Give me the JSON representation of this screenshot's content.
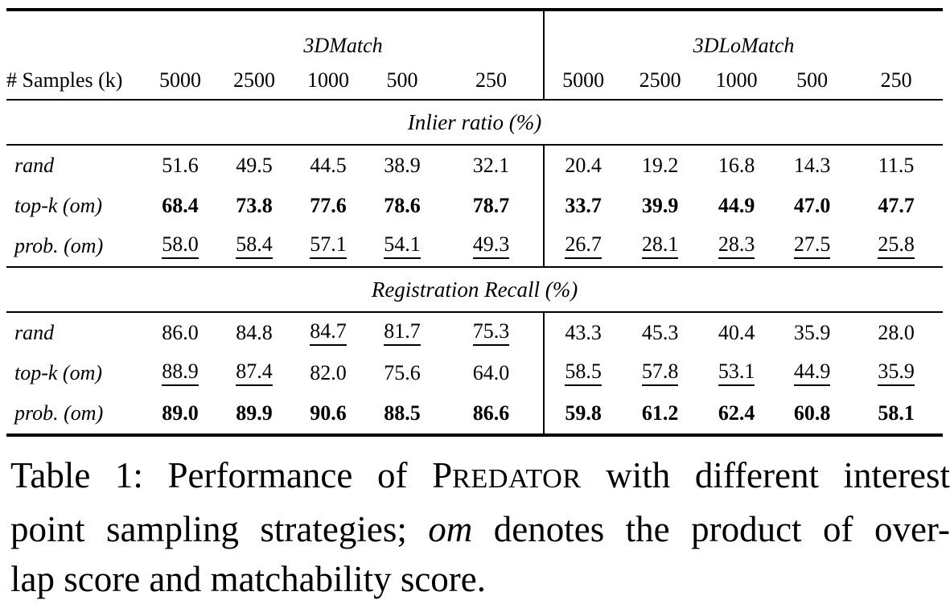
{
  "table": {
    "groups": [
      "3DMatch",
      "3DLoMatch"
    ],
    "samples_header": "# Samples (k)",
    "sample_cols": [
      "5000",
      "2500",
      "1000",
      "500",
      "250"
    ],
    "sections": [
      {
        "title": "Inlier ratio (%)",
        "rows": [
          {
            "label": "rand",
            "cells": [
              {
                "v": "51.6",
                "s": "n"
              },
              {
                "v": "49.5",
                "s": "n"
              },
              {
                "v": "44.5",
                "s": "n"
              },
              {
                "v": "38.9",
                "s": "n"
              },
              {
                "v": "32.1",
                "s": "n"
              },
              {
                "v": "20.4",
                "s": "n"
              },
              {
                "v": "19.2",
                "s": "n"
              },
              {
                "v": "16.8",
                "s": "n"
              },
              {
                "v": "14.3",
                "s": "n"
              },
              {
                "v": "11.5",
                "s": "n"
              }
            ]
          },
          {
            "label": "top-k (om)",
            "cells": [
              {
                "v": "68.4",
                "s": "b"
              },
              {
                "v": "73.8",
                "s": "b"
              },
              {
                "v": "77.6",
                "s": "b"
              },
              {
                "v": "78.6",
                "s": "b"
              },
              {
                "v": "78.7",
                "s": "b"
              },
              {
                "v": "33.7",
                "s": "b"
              },
              {
                "v": "39.9",
                "s": "b"
              },
              {
                "v": "44.9",
                "s": "b"
              },
              {
                "v": "47.0",
                "s": "b"
              },
              {
                "v": "47.7",
                "s": "b"
              }
            ]
          },
          {
            "label": "prob. (om)",
            "cells": [
              {
                "v": "58.0",
                "s": "u"
              },
              {
                "v": "58.4",
                "s": "u"
              },
              {
                "v": "57.1",
                "s": "u"
              },
              {
                "v": "54.1",
                "s": "u"
              },
              {
                "v": "49.3",
                "s": "u"
              },
              {
                "v": "26.7",
                "s": "u"
              },
              {
                "v": "28.1",
                "s": "u"
              },
              {
                "v": "28.3",
                "s": "u"
              },
              {
                "v": "27.5",
                "s": "u"
              },
              {
                "v": "25.8",
                "s": "u"
              }
            ]
          }
        ]
      },
      {
        "title": "Registration Recall (%)",
        "rows": [
          {
            "label": "rand",
            "cells": [
              {
                "v": "86.0",
                "s": "n"
              },
              {
                "v": "84.8",
                "s": "n"
              },
              {
                "v": "84.7",
                "s": "u"
              },
              {
                "v": "81.7",
                "s": "u"
              },
              {
                "v": "75.3",
                "s": "u"
              },
              {
                "v": "43.3",
                "s": "n"
              },
              {
                "v": "45.3",
                "s": "n"
              },
              {
                "v": "40.4",
                "s": "n"
              },
              {
                "v": "35.9",
                "s": "n"
              },
              {
                "v": "28.0",
                "s": "n"
              }
            ]
          },
          {
            "label": "top-k (om)",
            "cells": [
              {
                "v": "88.9",
                "s": "u"
              },
              {
                "v": "87.4",
                "s": "u"
              },
              {
                "v": "82.0",
                "s": "n"
              },
              {
                "v": "75.6",
                "s": "n"
              },
              {
                "v": "64.0",
                "s": "n"
              },
              {
                "v": "58.5",
                "s": "u"
              },
              {
                "v": "57.8",
                "s": "u"
              },
              {
                "v": "53.1",
                "s": "u"
              },
              {
                "v": "44.9",
                "s": "u"
              },
              {
                "v": "35.9",
                "s": "u"
              }
            ]
          },
          {
            "label": "prob. (om)",
            "cells": [
              {
                "v": "89.0",
                "s": "b"
              },
              {
                "v": "89.9",
                "s": "b"
              },
              {
                "v": "90.6",
                "s": "b"
              },
              {
                "v": "88.5",
                "s": "b"
              },
              {
                "v": "86.6",
                "s": "b"
              },
              {
                "v": "59.8",
                "s": "b"
              },
              {
                "v": "61.2",
                "s": "b"
              },
              {
                "v": "62.4",
                "s": "b"
              },
              {
                "v": "60.8",
                "s": "b"
              },
              {
                "v": "58.1",
                "s": "b"
              }
            ]
          }
        ]
      }
    ]
  },
  "caption": {
    "lines": [
      {
        "last": false,
        "segments": [
          {
            "t": "Table 1: Performance of P",
            "s": "n"
          },
          {
            "t": "REDATOR",
            "s": "sc"
          },
          {
            "t": " with different interest",
            "s": "n"
          }
        ]
      },
      {
        "last": false,
        "segments": [
          {
            "t": "point sampling strategies; ",
            "s": "n"
          },
          {
            "t": "om",
            "s": "i"
          },
          {
            "t": " denotes the product of over-",
            "s": "n"
          }
        ]
      },
      {
        "last": true,
        "segments": [
          {
            "t": "lap score and matchability score.",
            "s": "n"
          }
        ]
      }
    ]
  }
}
